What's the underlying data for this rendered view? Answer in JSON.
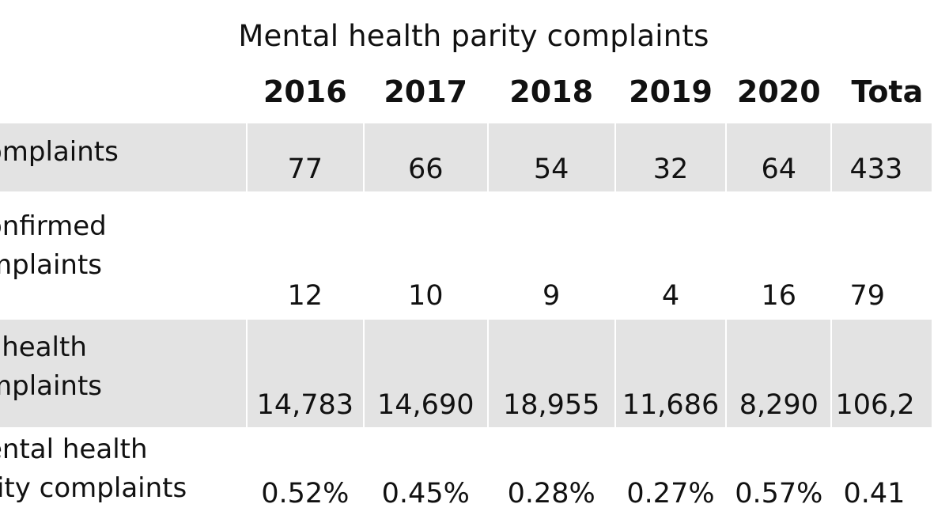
{
  "chart_data": {
    "type": "table",
    "title": "Mental health parity complaints",
    "columns": [
      "",
      "2016",
      "2017",
      "2018",
      "2019",
      "2020",
      "Total"
    ],
    "rows": [
      {
        "label_lines": [
          "omplaints"
        ],
        "values": [
          "77",
          "66",
          "54",
          "32",
          "64",
          "433"
        ]
      },
      {
        "label_lines": [
          "onfirmed",
          "mplaints"
        ],
        "values": [
          "12",
          "10",
          "9",
          "4",
          "16",
          "79"
        ]
      },
      {
        "label_lines": [
          "l health",
          "mplaints"
        ],
        "values": [
          "14,783",
          "14,690",
          "18,955",
          "11,686",
          "8,290",
          "106,2"
        ]
      },
      {
        "label_lines": [
          "ental health",
          "rity complaints"
        ],
        "values": [
          "0.52%",
          "0.45%",
          "0.28%",
          "0.27%",
          "0.57%",
          "0.41"
        ]
      }
    ],
    "header_total_visible": "Tota"
  },
  "colors": {
    "row_shade": "#e3e3e3",
    "row_plain": "#ffffff",
    "text": "#111111"
  }
}
